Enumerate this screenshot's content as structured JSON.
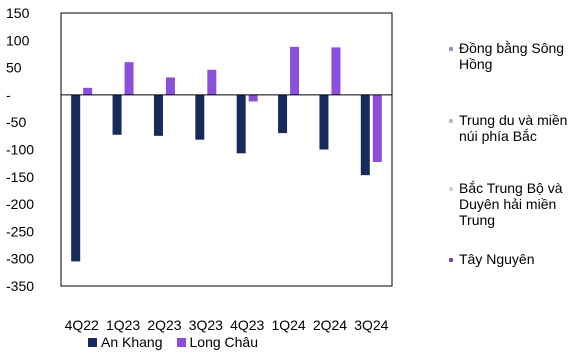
{
  "chart_data": {
    "type": "bar",
    "categories": [
      "4Q22",
      "1Q23",
      "2Q23",
      "3Q23",
      "4Q23",
      "1Q24",
      "2Q24",
      "3Q24"
    ],
    "series": [
      {
        "name": "An Khang",
        "color": "#172a5c",
        "values": [
          -305,
          -73,
          -75,
          -82,
          -107,
          -70,
          -100,
          -147
        ]
      },
      {
        "name": "Long Châu",
        "color": "#8b4fd9",
        "values": [
          13,
          60,
          32,
          46,
          -12,
          88,
          87,
          -123
        ]
      }
    ],
    "ylim": [
      -350,
      150
    ],
    "yticks": [
      {
        "value": 150,
        "label": "150"
      },
      {
        "value": 100,
        "label": "100"
      },
      {
        "value": 50,
        "label": "50"
      },
      {
        "value": 0,
        "label": "-"
      },
      {
        "value": -50,
        "label": "-50"
      },
      {
        "value": -100,
        "label": "-100"
      },
      {
        "value": -150,
        "label": "-150"
      },
      {
        "value": -200,
        "label": "-200"
      },
      {
        "value": -250,
        "label": "-250"
      },
      {
        "value": -300,
        "label": "-300"
      },
      {
        "value": -350,
        "label": "-350"
      }
    ],
    "title": "",
    "xlabel": "",
    "ylabel": "",
    "legend": "bottom",
    "grid": false
  },
  "side_legend": [
    {
      "label": "Đồng bằng Sông Hồng",
      "lines": [
        "Đồng bằng Sông",
        "Hồng"
      ],
      "color": "#8a95b8"
    },
    {
      "label": "Trung du và miền núi phía Bắc",
      "lines": [
        "Trung du và miền",
        "núi phía Bắc"
      ],
      "color": "#b8bcc8"
    },
    {
      "label": "Bắc Trung Bộ và Duyên hải miền Trung",
      "lines": [
        "Bắc Trung Bộ và",
        "Duyên hải miền",
        "Trung"
      ],
      "color": "#d4d4d8"
    },
    {
      "label": "Tây Nguyên",
      "lines": [
        "Tây Nguyên"
      ],
      "color": "#7a3fb0"
    }
  ]
}
